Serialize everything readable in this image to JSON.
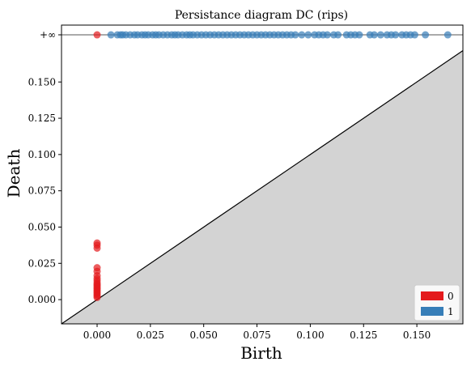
{
  "chart_data": {
    "type": "scatter",
    "title": "Persistance diagram DC (rips)",
    "xlabel": "Birth",
    "ylabel": "Death",
    "xlim": [
      -0.0167,
      0.1716
    ],
    "ylim": [
      -0.0167,
      0.1892
    ],
    "infinity_y": 0.1825,
    "infinity_label": "+∞",
    "x_ticks": [
      {
        "value": 0.0,
        "label": "0.000"
      },
      {
        "value": 0.025,
        "label": "0.025"
      },
      {
        "value": 0.05,
        "label": "0.050"
      },
      {
        "value": 0.075,
        "label": "0.075"
      },
      {
        "value": 0.1,
        "label": "0.100"
      },
      {
        "value": 0.125,
        "label": "0.125"
      },
      {
        "value": 0.15,
        "label": "0.150"
      }
    ],
    "y_ticks": [
      {
        "value": 0.0,
        "label": "0.000"
      },
      {
        "value": 0.025,
        "label": "0.025"
      },
      {
        "value": 0.05,
        "label": "0.050"
      },
      {
        "value": 0.075,
        "label": "0.075"
      },
      {
        "value": 0.1,
        "label": "0.100"
      },
      {
        "value": 0.125,
        "label": "0.125"
      },
      {
        "value": 0.15,
        "label": "0.150"
      }
    ],
    "legend": {
      "position": "lower right"
    },
    "series": [
      {
        "name": "0",
        "color": "#e41a1c",
        "points": [
          [
            0,
            0.039
          ],
          [
            0,
            0.0375
          ],
          [
            0,
            0.0355
          ],
          [
            0,
            0.022
          ],
          [
            0,
            0.0195
          ],
          [
            0,
            0.0165
          ],
          [
            0,
            0.0145
          ],
          [
            0,
            0.013
          ],
          [
            0,
            0.0115
          ],
          [
            0,
            0.0105
          ],
          [
            0,
            0.0095
          ],
          [
            0,
            0.0085
          ],
          [
            0,
            0.0075
          ],
          [
            0,
            0.0065
          ],
          [
            0,
            0.0055
          ],
          [
            0,
            0.0045
          ],
          [
            0,
            0.0035
          ],
          [
            0,
            0.0025
          ],
          [
            0,
            0.0015
          ]
        ],
        "infinite_births": [
          0.0
        ]
      },
      {
        "name": "1",
        "color": "#377eb8",
        "points": [],
        "infinite_births": [
          0.0065,
          0.0095,
          0.011,
          0.012,
          0.0135,
          0.0155,
          0.0175,
          0.019,
          0.021,
          0.0225,
          0.024,
          0.026,
          0.0275,
          0.029,
          0.031,
          0.033,
          0.035,
          0.0365,
          0.038,
          0.04,
          0.042,
          0.0435,
          0.045,
          0.047,
          0.049,
          0.051,
          0.053,
          0.055,
          0.057,
          0.059,
          0.061,
          0.063,
          0.065,
          0.067,
          0.069,
          0.071,
          0.073,
          0.075,
          0.077,
          0.079,
          0.081,
          0.083,
          0.085,
          0.087,
          0.089,
          0.091,
          0.093,
          0.096,
          0.099,
          0.102,
          0.104,
          0.106,
          0.108,
          0.111,
          0.113,
          0.117,
          0.119,
          0.121,
          0.123,
          0.128,
          0.13,
          0.133,
          0.136,
          0.138,
          0.14,
          0.143,
          0.145,
          0.147,
          0.149,
          0.154,
          0.1645
        ]
      }
    ]
  }
}
